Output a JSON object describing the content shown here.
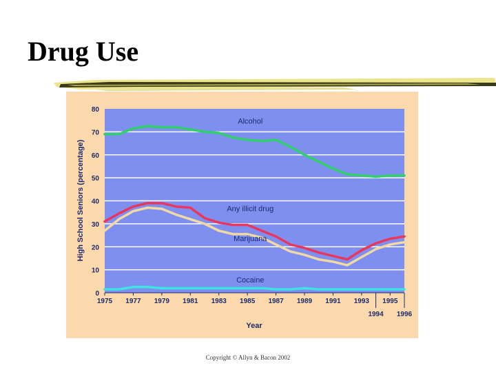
{
  "slide": {
    "title": "Drug Use",
    "copyright": "Copyright © Allyn & Bacon 2002"
  },
  "colors": {
    "panel": "#fcd9ad",
    "plot": "#7f8ff0",
    "grid": "#ffffff",
    "axis_text": "#1b2a6b"
  },
  "chart_data": {
    "type": "line",
    "title": "",
    "xlabel": "Year",
    "ylabel": "High School Seniors (percentage)",
    "xlim": [
      1975,
      1996
    ],
    "ylim": [
      0,
      80
    ],
    "yticks": [
      0,
      10,
      20,
      30,
      40,
      50,
      60,
      70,
      80
    ],
    "xticks_top": [
      "1975",
      "1977",
      "1979",
      "1981",
      "1983",
      "1985",
      "1987",
      "1989",
      "1991",
      "1993",
      "1995"
    ],
    "xticks_bottom": [
      "1994",
      "1996"
    ],
    "grid": true,
    "x": [
      1975,
      1976,
      1977,
      1978,
      1979,
      1980,
      1981,
      1982,
      1983,
      1984,
      1985,
      1986,
      1987,
      1988,
      1989,
      1990,
      1991,
      1992,
      1993,
      1994,
      1995,
      1996
    ],
    "series": [
      {
        "name": "Alcohol",
        "color": "#2fcf6a",
        "values": [
          69,
          69,
          71.5,
          72.5,
          72,
          72,
          71,
          70,
          69.5,
          67.5,
          66.5,
          66,
          66.5,
          63.5,
          60,
          57,
          54,
          51.5,
          51,
          50.5,
          51,
          51
        ],
        "label_x": 1985.2,
        "label_y": 73.5
      },
      {
        "name": "Any illicit drug",
        "color": "#e8365c",
        "values": [
          31,
          34.5,
          37.5,
          39,
          39,
          37.5,
          37,
          32.5,
          30.5,
          29.5,
          29.5,
          27,
          24.5,
          21,
          19.5,
          17.5,
          16,
          14.5,
          18.5,
          21.5,
          23.5,
          24.5
        ],
        "label_x": 1985.2,
        "label_y": 35.5
      },
      {
        "name": "Marijuana",
        "color": "#f2d8a3",
        "values": [
          27,
          32,
          35.5,
          37,
          36.5,
          34,
          32,
          30,
          27,
          25.5,
          25.5,
          24,
          21,
          18,
          16.5,
          14.5,
          13.5,
          12,
          15.5,
          19,
          21,
          22
        ],
        "label_x": 1985.2,
        "label_y": 22.5
      },
      {
        "name": "Cocaine",
        "color": "#3fe3df",
        "values": [
          1.5,
          1.5,
          2.5,
          2.5,
          2,
          2,
          2,
          2,
          2,
          2,
          2,
          2,
          1.5,
          1.5,
          2,
          1.5,
          1.5,
          1.5,
          1.5,
          1.5,
          1.5,
          1.5
        ],
        "label_x": 1985.2,
        "label_y": 4.5
      }
    ]
  }
}
